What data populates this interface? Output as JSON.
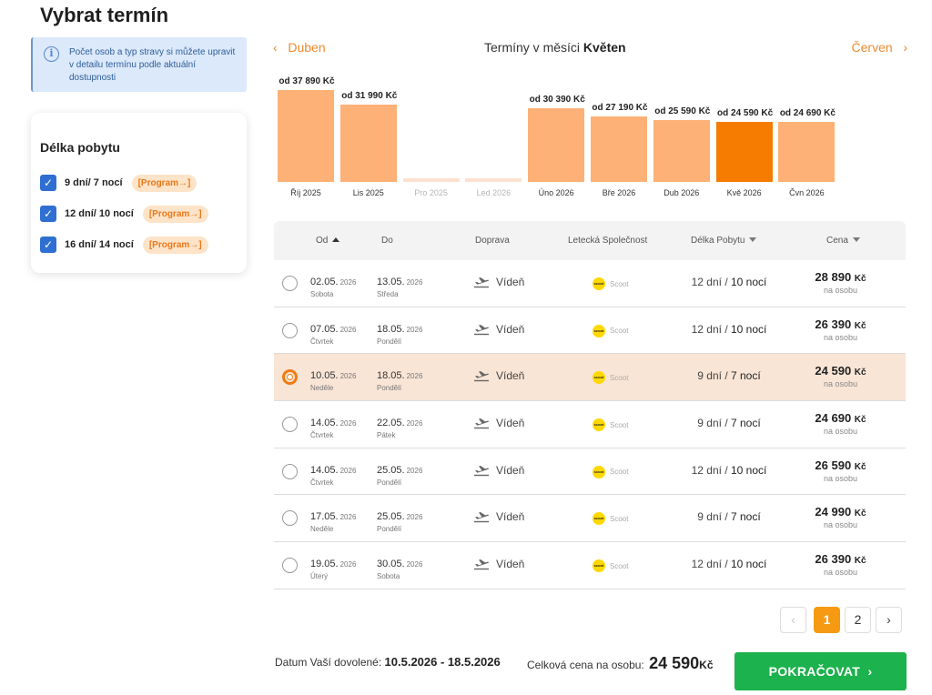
{
  "page": {
    "title": "Vybrat termín"
  },
  "info": {
    "text": "Počet osob a typ stravy si můžete upravit v detailu termínu podle aktuální dostupnosti"
  },
  "stay_filter": {
    "title": "Délka pobytu",
    "items": [
      {
        "label": "9 dní/ 7 nocí",
        "checked": true,
        "tag": "[Program→]"
      },
      {
        "label": "12 dní/ 10 nocí",
        "checked": true,
        "tag": "[Program→]"
      },
      {
        "label": "16 dní/ 14 nocí",
        "checked": true,
        "tag": "[Program→]"
      }
    ]
  },
  "month_nav": {
    "prev_label": "Duben",
    "next_label": "Červen",
    "title_prefix": "Termíny v měsíci",
    "current_month": "Květen"
  },
  "chart_data": {
    "type": "bar",
    "categories": [
      "Říj 2025",
      "Lis 2025",
      "Pro 2025",
      "Led 2026",
      "Úno 2026",
      "Bře 2026",
      "Dub 2026",
      "Kvě 2026",
      "Čvn 2026"
    ],
    "values": [
      37890,
      31990,
      null,
      null,
      30390,
      27190,
      25590,
      24590,
      24690
    ],
    "value_labels": [
      "od 37 890 Kč",
      "od 31 990 Kč",
      "",
      "",
      "od 30 390 Kč",
      "od 27 190 Kč",
      "od 25 590 Kč",
      "od 24 590 Kč",
      "od 24 690 Kč"
    ],
    "selected": "Kvě 2026",
    "colors": {
      "bar": "#fdb176",
      "selected": "#f57c00",
      "empty": "#fde1d0"
    }
  },
  "table": {
    "headers": {
      "from": "Od",
      "to": "Do",
      "transport": "Doprava",
      "airline": "Letecká Společnost",
      "length": "Délka Pobytu",
      "price": "Cena"
    },
    "rows": [
      {
        "from_date": "02.05.",
        "from_year": "2026",
        "from_day": "Sobota",
        "to_date": "13.05.",
        "to_year": "2026",
        "to_day": "Středa",
        "transport": "Vídeň",
        "airline": "Scoot",
        "days": "12 dní",
        "nights": "10 nocí",
        "price": "28 890",
        "currency": "Kč",
        "per": "na osobu",
        "selected": false
      },
      {
        "from_date": "07.05.",
        "from_year": "2026",
        "from_day": "Čtvrtek",
        "to_date": "18.05.",
        "to_year": "2026",
        "to_day": "Pondělí",
        "transport": "Vídeň",
        "airline": "Scoot",
        "days": "12 dní",
        "nights": "10 nocí",
        "price": "26 390",
        "currency": "Kč",
        "per": "na osobu",
        "selected": false
      },
      {
        "from_date": "10.05.",
        "from_year": "2026",
        "from_day": "Neděle",
        "to_date": "18.05.",
        "to_year": "2026",
        "to_day": "Pondělí",
        "transport": "Vídeň",
        "airline": "Scoot",
        "days": "9 dní",
        "nights": "7 nocí",
        "price": "24 590",
        "currency": "Kč",
        "per": "na osobu",
        "selected": true
      },
      {
        "from_date": "14.05.",
        "from_year": "2026",
        "from_day": "Čtvrtek",
        "to_date": "22.05.",
        "to_year": "2026",
        "to_day": "Pátek",
        "transport": "Vídeň",
        "airline": "Scoot",
        "days": "9 dní",
        "nights": "7 nocí",
        "price": "24 690",
        "currency": "Kč",
        "per": "na osobu",
        "selected": false
      },
      {
        "from_date": "14.05.",
        "from_year": "2026",
        "from_day": "Čtvrtek",
        "to_date": "25.05.",
        "to_year": "2026",
        "to_day": "Pondělí",
        "transport": "Vídeň",
        "airline": "Scoot",
        "days": "12 dní",
        "nights": "10 nocí",
        "price": "26 590",
        "currency": "Kč",
        "per": "na osobu",
        "selected": false
      },
      {
        "from_date": "17.05.",
        "from_year": "2026",
        "from_day": "Neděle",
        "to_date": "25.05.",
        "to_year": "2026",
        "to_day": "Pondělí",
        "transport": "Vídeň",
        "airline": "Scoot",
        "days": "9 dní",
        "nights": "7 nocí",
        "price": "24 990",
        "currency": "Kč",
        "per": "na osobu",
        "selected": false
      },
      {
        "from_date": "19.05.",
        "from_year": "2026",
        "from_day": "Úterý",
        "to_date": "30.05.",
        "to_year": "2026",
        "to_day": "Sobota",
        "transport": "Vídeň",
        "airline": "Scoot",
        "days": "12 dní",
        "nights": "10 nocí",
        "price": "26 390",
        "currency": "Kč",
        "per": "na osobu",
        "selected": false
      }
    ]
  },
  "pagination": {
    "prev": "‹",
    "pages": [
      "1",
      "2"
    ],
    "current": "1",
    "next": "›"
  },
  "footer": {
    "dates_label": "Datum Vaší dovolené:",
    "dates_value": "10.5.2026 - 18.5.2026",
    "total_label": "Celková cena na osobu:",
    "total_value": "24 590",
    "total_currency": "Kč",
    "continue_label": "POKRAČOVAT",
    "continue_icon": "chevron-right-icon"
  }
}
